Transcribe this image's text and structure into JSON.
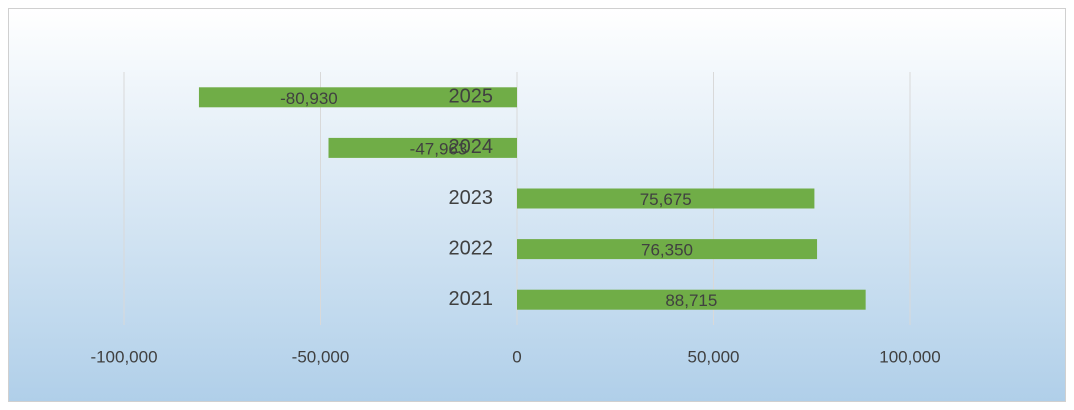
{
  "chart_data": {
    "type": "bar",
    "orientation": "horizontal",
    "categories": [
      "2021",
      "2022",
      "2023",
      "2024",
      "2025"
    ],
    "values": [
      88715,
      76350,
      75675,
      -47963,
      -80930
    ],
    "value_labels": [
      "88,715",
      "76,350",
      "75,675",
      "-47,963",
      "-80,930"
    ],
    "color": "#70ad47",
    "xlim": [
      -100000,
      100000
    ],
    "xticks": [
      {
        "value": -100000,
        "label": "-100,000"
      },
      {
        "value": -50000,
        "label": "-50,000"
      },
      0,
      {
        "value": 50000,
        "label": "50,000"
      },
      {
        "value": 100000,
        "label": "100,000"
      }
    ],
    "grid": true
  }
}
